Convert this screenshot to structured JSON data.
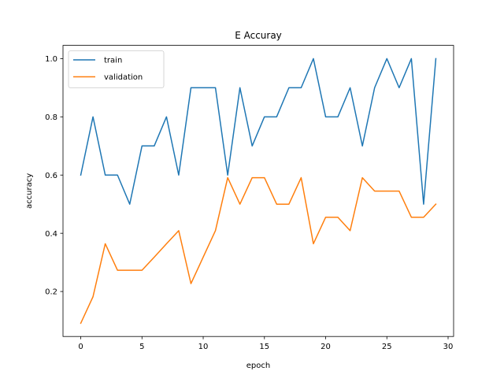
{
  "chart_data": {
    "type": "line",
    "title": "E Accuray",
    "xlabel": "epoch",
    "ylabel": "accuracy",
    "xlim": [
      -1.45,
      30.45
    ],
    "ylim": [
      0.0455,
      1.0455
    ],
    "xticks": [
      0,
      5,
      10,
      15,
      20,
      25,
      30
    ],
    "xtick_labels": [
      "0",
      "5",
      "10",
      "15",
      "20",
      "25",
      "30"
    ],
    "yticks": [
      0.2,
      0.4,
      0.6,
      0.8,
      1.0
    ],
    "ytick_labels": [
      "0.2",
      "0.4",
      "0.6",
      "0.8",
      "1.0"
    ],
    "grid": false,
    "legend_position": "top-left",
    "x": [
      0,
      1,
      2,
      3,
      4,
      5,
      6,
      7,
      8,
      9,
      10,
      11,
      12,
      13,
      14,
      15,
      16,
      17,
      18,
      19,
      20,
      21,
      22,
      23,
      24,
      25,
      26,
      27,
      28,
      29
    ],
    "series": [
      {
        "name": "train",
        "color": "#1f77b4",
        "values": [
          0.6,
          0.8,
          0.6,
          0.6,
          0.5,
          0.7,
          0.7,
          0.8,
          0.6,
          0.9,
          0.9,
          0.9,
          0.6,
          0.9,
          0.7,
          0.8,
          0.8,
          0.9,
          0.9,
          1.0,
          0.8,
          0.8,
          0.9,
          0.7,
          0.9,
          1.0,
          0.9,
          1.0,
          0.5,
          1.0
        ]
      },
      {
        "name": "validation",
        "color": "#ff7f0e",
        "values": [
          0.091,
          0.182,
          0.364,
          0.273,
          0.273,
          0.273,
          0.318,
          0.364,
          0.409,
          0.227,
          0.318,
          0.409,
          0.591,
          0.5,
          0.591,
          0.591,
          0.5,
          0.5,
          0.591,
          0.364,
          0.455,
          0.455,
          0.409,
          0.591,
          0.545,
          0.545,
          0.545,
          0.455,
          0.455,
          0.5
        ]
      }
    ]
  }
}
